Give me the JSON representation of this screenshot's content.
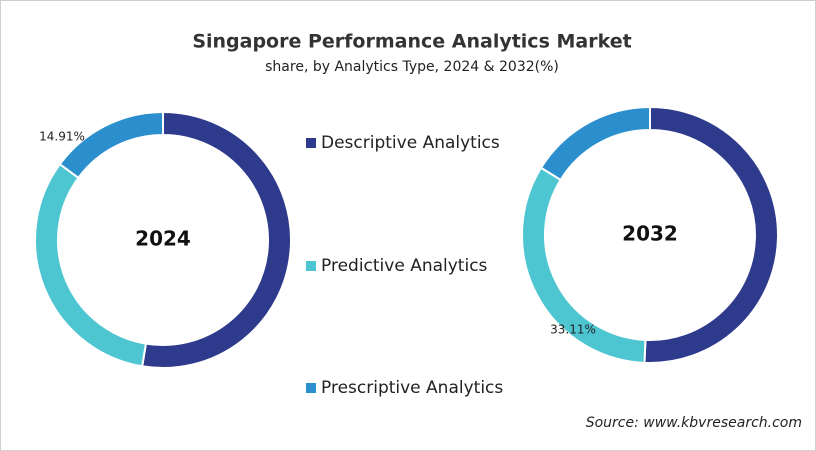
{
  "title": "Singapore Performance Analytics Market",
  "subtitle": "share, by Analytics Type, 2024 & 2032(%)",
  "source": "Source: www.kbvresearch.com",
  "chart_data": [
    {
      "type": "pie",
      "title": "2024",
      "categories": [
        "Descriptive Analytics",
        "Predictive Analytics",
        "Prescriptive Analytics"
      ],
      "values": [
        52.6,
        32.49,
        14.91
      ],
      "value_labels": [
        null,
        null,
        "14.91%"
      ],
      "colors": [
        "#2e3a8c",
        "#4ec6d2",
        "#2b8fce"
      ]
    },
    {
      "type": "pie",
      "title": "2032",
      "categories": [
        "Descriptive Analytics",
        "Predictive Analytics",
        "Prescriptive Analytics"
      ],
      "values": [
        50.69,
        33.11,
        16.2
      ],
      "value_labels": [
        null,
        "33.11%",
        null
      ],
      "colors": [
        "#2e3a8c",
        "#4ec6d2",
        "#2b8fce"
      ]
    }
  ]
}
